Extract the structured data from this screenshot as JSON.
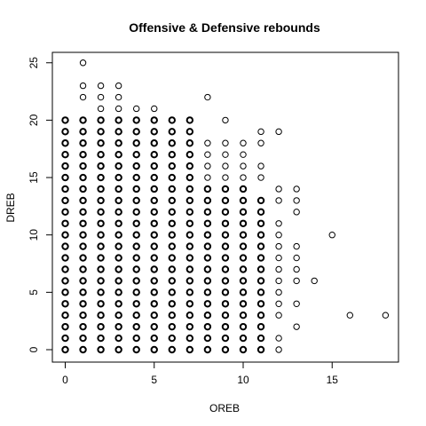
{
  "chart_data": {
    "type": "scatter",
    "title": "Offensive & Defensive rebounds",
    "xlabel": "OREB",
    "ylabel": "DREB",
    "xlim": [
      0,
      18
    ],
    "ylim": [
      0,
      25
    ],
    "xticks": [
      "0",
      "5",
      "10",
      "15"
    ],
    "yticks": [
      "0",
      "5",
      "10",
      "15",
      "20",
      "25"
    ],
    "grid": false,
    "point_color": "#000000",
    "marker": "open-circle",
    "points": [
      [
        0,
        0
      ],
      [
        0,
        1
      ],
      [
        0,
        2
      ],
      [
        0,
        3
      ],
      [
        0,
        4
      ],
      [
        0,
        5
      ],
      [
        0,
        6
      ],
      [
        0,
        7
      ],
      [
        0,
        8
      ],
      [
        0,
        9
      ],
      [
        0,
        10
      ],
      [
        0,
        11
      ],
      [
        0,
        12
      ],
      [
        0,
        13
      ],
      [
        0,
        14
      ],
      [
        0,
        15
      ],
      [
        0,
        16
      ],
      [
        0,
        17
      ],
      [
        0,
        18
      ],
      [
        0,
        19
      ],
      [
        0,
        20
      ],
      [
        1,
        0
      ],
      [
        1,
        1
      ],
      [
        1,
        2
      ],
      [
        1,
        3
      ],
      [
        1,
        4
      ],
      [
        1,
        5
      ],
      [
        1,
        6
      ],
      [
        1,
        7
      ],
      [
        1,
        8
      ],
      [
        1,
        9
      ],
      [
        1,
        10
      ],
      [
        1,
        11
      ],
      [
        1,
        12
      ],
      [
        1,
        13
      ],
      [
        1,
        14
      ],
      [
        1,
        15
      ],
      [
        1,
        16
      ],
      [
        1,
        17
      ],
      [
        1,
        18
      ],
      [
        1,
        19
      ],
      [
        1,
        20
      ],
      [
        1,
        22
      ],
      [
        1,
        23
      ],
      [
        1,
        25
      ],
      [
        2,
        0
      ],
      [
        2,
        1
      ],
      [
        2,
        2
      ],
      [
        2,
        3
      ],
      [
        2,
        4
      ],
      [
        2,
        5
      ],
      [
        2,
        6
      ],
      [
        2,
        7
      ],
      [
        2,
        8
      ],
      [
        2,
        9
      ],
      [
        2,
        10
      ],
      [
        2,
        11
      ],
      [
        2,
        12
      ],
      [
        2,
        13
      ],
      [
        2,
        14
      ],
      [
        2,
        15
      ],
      [
        2,
        16
      ],
      [
        2,
        17
      ],
      [
        2,
        18
      ],
      [
        2,
        19
      ],
      [
        2,
        20
      ],
      [
        2,
        21
      ],
      [
        2,
        22
      ],
      [
        2,
        23
      ],
      [
        3,
        0
      ],
      [
        3,
        1
      ],
      [
        3,
        2
      ],
      [
        3,
        3
      ],
      [
        3,
        4
      ],
      [
        3,
        5
      ],
      [
        3,
        6
      ],
      [
        3,
        7
      ],
      [
        3,
        8
      ],
      [
        3,
        9
      ],
      [
        3,
        10
      ],
      [
        3,
        11
      ],
      [
        3,
        12
      ],
      [
        3,
        13
      ],
      [
        3,
        14
      ],
      [
        3,
        15
      ],
      [
        3,
        16
      ],
      [
        3,
        17
      ],
      [
        3,
        18
      ],
      [
        3,
        19
      ],
      [
        3,
        20
      ],
      [
        3,
        21
      ],
      [
        3,
        22
      ],
      [
        3,
        23
      ],
      [
        4,
        0
      ],
      [
        4,
        1
      ],
      [
        4,
        2
      ],
      [
        4,
        3
      ],
      [
        4,
        4
      ],
      [
        4,
        5
      ],
      [
        4,
        6
      ],
      [
        4,
        7
      ],
      [
        4,
        8
      ],
      [
        4,
        9
      ],
      [
        4,
        10
      ],
      [
        4,
        11
      ],
      [
        4,
        12
      ],
      [
        4,
        13
      ],
      [
        4,
        14
      ],
      [
        4,
        15
      ],
      [
        4,
        16
      ],
      [
        4,
        17
      ],
      [
        4,
        18
      ],
      [
        4,
        19
      ],
      [
        4,
        20
      ],
      [
        4,
        21
      ],
      [
        5,
        0
      ],
      [
        5,
        1
      ],
      [
        5,
        2
      ],
      [
        5,
        3
      ],
      [
        5,
        4
      ],
      [
        5,
        5
      ],
      [
        5,
        6
      ],
      [
        5,
        7
      ],
      [
        5,
        8
      ],
      [
        5,
        9
      ],
      [
        5,
        10
      ],
      [
        5,
        11
      ],
      [
        5,
        12
      ],
      [
        5,
        13
      ],
      [
        5,
        14
      ],
      [
        5,
        15
      ],
      [
        5,
        16
      ],
      [
        5,
        17
      ],
      [
        5,
        18
      ],
      [
        5,
        19
      ],
      [
        5,
        20
      ],
      [
        5,
        21
      ],
      [
        6,
        0
      ],
      [
        6,
        1
      ],
      [
        6,
        2
      ],
      [
        6,
        3
      ],
      [
        6,
        4
      ],
      [
        6,
        5
      ],
      [
        6,
        6
      ],
      [
        6,
        7
      ],
      [
        6,
        8
      ],
      [
        6,
        9
      ],
      [
        6,
        10
      ],
      [
        6,
        11
      ],
      [
        6,
        12
      ],
      [
        6,
        13
      ],
      [
        6,
        14
      ],
      [
        6,
        15
      ],
      [
        6,
        16
      ],
      [
        6,
        17
      ],
      [
        6,
        18
      ],
      [
        6,
        19
      ],
      [
        6,
        20
      ],
      [
        7,
        0
      ],
      [
        7,
        1
      ],
      [
        7,
        2
      ],
      [
        7,
        3
      ],
      [
        7,
        4
      ],
      [
        7,
        5
      ],
      [
        7,
        6
      ],
      [
        7,
        7
      ],
      [
        7,
        8
      ],
      [
        7,
        9
      ],
      [
        7,
        10
      ],
      [
        7,
        11
      ],
      [
        7,
        12
      ],
      [
        7,
        13
      ],
      [
        7,
        14
      ],
      [
        7,
        15
      ],
      [
        7,
        16
      ],
      [
        7,
        17
      ],
      [
        7,
        18
      ],
      [
        7,
        19
      ],
      [
        7,
        20
      ],
      [
        8,
        0
      ],
      [
        8,
        1
      ],
      [
        8,
        2
      ],
      [
        8,
        3
      ],
      [
        8,
        4
      ],
      [
        8,
        5
      ],
      [
        8,
        6
      ],
      [
        8,
        7
      ],
      [
        8,
        8
      ],
      [
        8,
        9
      ],
      [
        8,
        10
      ],
      [
        8,
        11
      ],
      [
        8,
        12
      ],
      [
        8,
        13
      ],
      [
        8,
        14
      ],
      [
        8,
        15
      ],
      [
        8,
        16
      ],
      [
        8,
        17
      ],
      [
        8,
        18
      ],
      [
        8,
        22
      ],
      [
        9,
        0
      ],
      [
        9,
        1
      ],
      [
        9,
        2
      ],
      [
        9,
        3
      ],
      [
        9,
        4
      ],
      [
        9,
        5
      ],
      [
        9,
        6
      ],
      [
        9,
        7
      ],
      [
        9,
        8
      ],
      [
        9,
        9
      ],
      [
        9,
        10
      ],
      [
        9,
        11
      ],
      [
        9,
        12
      ],
      [
        9,
        13
      ],
      [
        9,
        14
      ],
      [
        9,
        15
      ],
      [
        9,
        16
      ],
      [
        9,
        17
      ],
      [
        9,
        18
      ],
      [
        9,
        20
      ],
      [
        10,
        0
      ],
      [
        10,
        1
      ],
      [
        10,
        2
      ],
      [
        10,
        3
      ],
      [
        10,
        4
      ],
      [
        10,
        5
      ],
      [
        10,
        6
      ],
      [
        10,
        7
      ],
      [
        10,
        8
      ],
      [
        10,
        9
      ],
      [
        10,
        10
      ],
      [
        10,
        11
      ],
      [
        10,
        12
      ],
      [
        10,
        13
      ],
      [
        10,
        14
      ],
      [
        10,
        15
      ],
      [
        10,
        16
      ],
      [
        10,
        17
      ],
      [
        10,
        18
      ],
      [
        11,
        0
      ],
      [
        11,
        1
      ],
      [
        11,
        2
      ],
      [
        11,
        3
      ],
      [
        11,
        4
      ],
      [
        11,
        5
      ],
      [
        11,
        6
      ],
      [
        11,
        7
      ],
      [
        11,
        8
      ],
      [
        11,
        9
      ],
      [
        11,
        10
      ],
      [
        11,
        11
      ],
      [
        11,
        12
      ],
      [
        11,
        13
      ],
      [
        11,
        15
      ],
      [
        11,
        16
      ],
      [
        11,
        18
      ],
      [
        11,
        19
      ],
      [
        12,
        0
      ],
      [
        12,
        1
      ],
      [
        12,
        3
      ],
      [
        12,
        4
      ],
      [
        12,
        5
      ],
      [
        12,
        6
      ],
      [
        12,
        7
      ],
      [
        12,
        8
      ],
      [
        12,
        9
      ],
      [
        12,
        10
      ],
      [
        12,
        11
      ],
      [
        12,
        13
      ],
      [
        12,
        14
      ],
      [
        12,
        19
      ],
      [
        13,
        2
      ],
      [
        13,
        4
      ],
      [
        13,
        6
      ],
      [
        13,
        7
      ],
      [
        13,
        8
      ],
      [
        13,
        9
      ],
      [
        13,
        12
      ],
      [
        13,
        13
      ],
      [
        13,
        14
      ],
      [
        14,
        6
      ],
      [
        15,
        10
      ],
      [
        16,
        3
      ],
      [
        18,
        3
      ]
    ]
  }
}
